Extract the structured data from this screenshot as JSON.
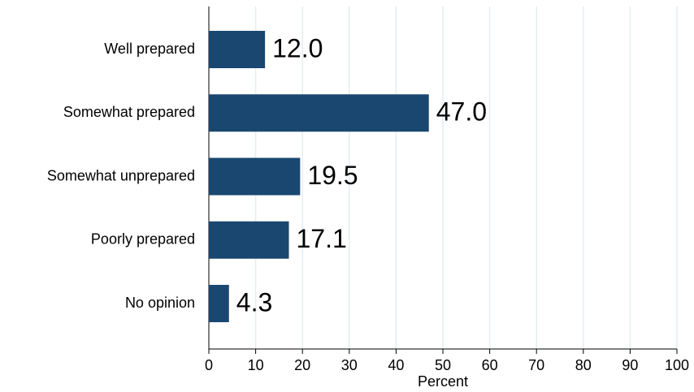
{
  "chart_data": {
    "type": "bar",
    "orientation": "horizontal",
    "categories": [
      "Well prepared",
      "Somewhat prepared",
      "Somewhat unprepared",
      "Poorly prepared",
      "No opinion"
    ],
    "values": [
      12,
      47,
      19.5,
      17.1,
      4.3
    ],
    "value_labels": [
      "12.0",
      "47.0",
      "19.5",
      "17.1",
      "4.3"
    ],
    "color": "#1a476f",
    "xlabel": "Percent",
    "xlim": [
      0,
      100
    ],
    "xticks": [
      0,
      10,
      20,
      30,
      40,
      50,
      60,
      70,
      80,
      90,
      100
    ],
    "grid": true
  }
}
